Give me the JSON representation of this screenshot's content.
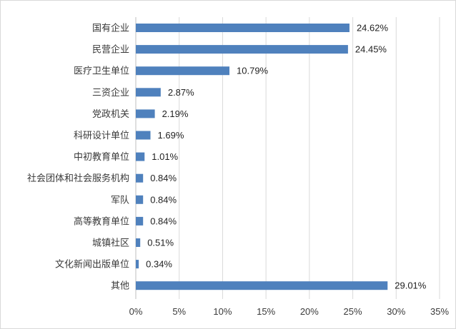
{
  "chart_data": {
    "type": "bar",
    "orientation": "horizontal",
    "title": "",
    "xlabel": "",
    "ylabel": "",
    "categories": [
      "国有企业",
      "民营企业",
      "医疗卫生单位",
      "三资企业",
      "党政机关",
      "科研设计单位",
      "中初教育单位",
      "社会团体和社会服务机构",
      "军队",
      "高等教育单位",
      "城镇社区",
      "文化新闻出版单位",
      "其他"
    ],
    "values": [
      24.62,
      24.45,
      10.79,
      2.87,
      2.19,
      1.69,
      1.01,
      0.84,
      0.84,
      0.84,
      0.51,
      0.34,
      29.01
    ],
    "value_labels": [
      "24.62%",
      "24.45%",
      "10.79%",
      "2.87%",
      "2.19%",
      "1.69%",
      "1.01%",
      "0.84%",
      "0.84%",
      "0.84%",
      "0.51%",
      "0.34%",
      "29.01%"
    ],
    "xlim": [
      0,
      35
    ],
    "x_ticks": [
      0,
      5,
      10,
      15,
      20,
      25,
      30,
      35
    ],
    "x_tick_labels": [
      "0%",
      "5%",
      "10%",
      "15%",
      "20%",
      "25%",
      "30%",
      "35%"
    ],
    "grid": true,
    "legend": "none",
    "bar_color": "#4f81bd"
  }
}
